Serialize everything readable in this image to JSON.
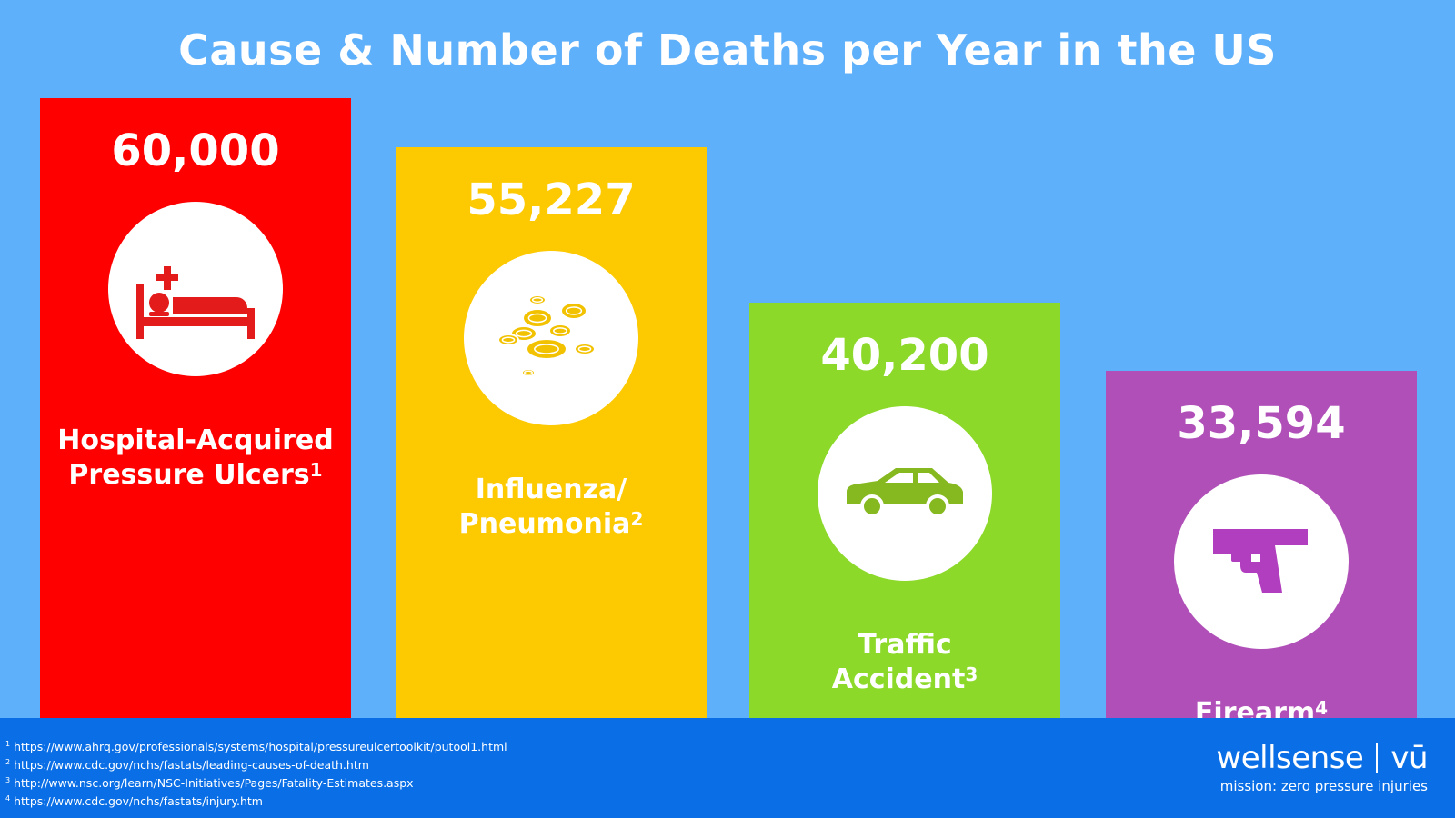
{
  "chart_data": {
    "type": "bar",
    "title": "Cause & Number of Deaths per Year in the US",
    "categories": [
      "Hospital-Acquired Pressure Ulcers",
      "Influenza/ Pneumonia",
      "Traffic Accident",
      "Firearm"
    ],
    "values": [
      60000,
      55227,
      40200,
      33594
    ],
    "value_labels": [
      "60,000",
      "55,227",
      "40,200",
      "33,594"
    ],
    "label_lines": [
      [
        "Hospital-Acquired",
        "Pressure Ulcers"
      ],
      [
        "Influenza/",
        "Pneumonia"
      ],
      [
        "Traffic",
        "Accident"
      ],
      [
        "Firearm"
      ]
    ],
    "footnote_marks": [
      "1",
      "2",
      "3",
      "4"
    ],
    "colors": [
      "#ff0000",
      "#fdc900",
      "#8cd92a",
      "#b04fb8"
    ],
    "icon_colors": [
      "#e31b1b",
      "#f2c200",
      "#86b81f",
      "#b13dbf"
    ],
    "icons": [
      "hospital-bed-icon",
      "virus-cells-icon",
      "car-icon",
      "handgun-icon"
    ],
    "ylim": [
      0,
      60000
    ],
    "grid": false,
    "legend": "none"
  },
  "footer": {
    "references": [
      {
        "mark": "1",
        "url": "https://www.ahrq.gov/professionals/systems/hospital/pressureulcertoolkit/putool1.html"
      },
      {
        "mark": "2",
        "url": "https://www.cdc.gov/nchs/fastats/leading-causes-of-death.htm"
      },
      {
        "mark": "3",
        "url": "http://www.nsc.org/learn/NSC-Initiatives/Pages/Fatality-Estimates.aspx"
      },
      {
        "mark": "4",
        "url": "https://www.cdc.gov/nchs/fastats/injury.htm"
      }
    ],
    "brand": "wellsense",
    "brand_product": "vū",
    "tagline": "mission: zero pressure injuries"
  },
  "colors": {
    "background": "#5fb0fa",
    "footer": "#0a6fe6"
  }
}
